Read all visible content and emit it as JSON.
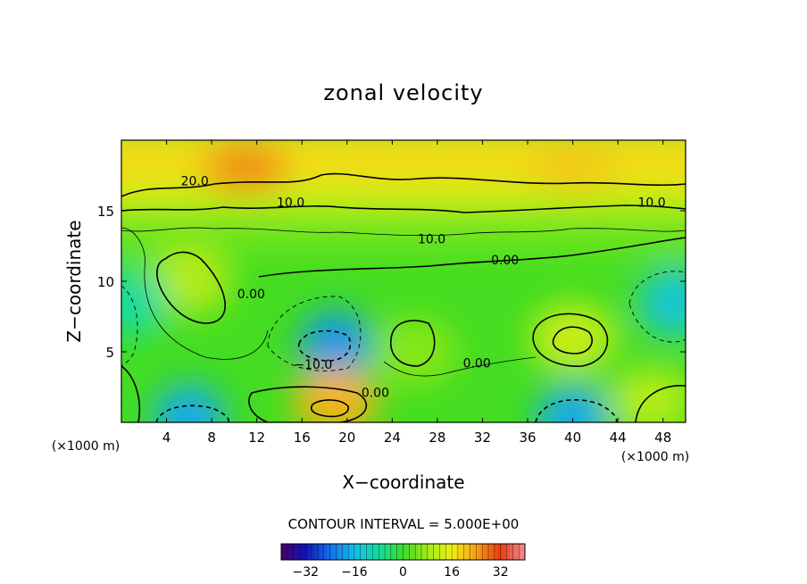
{
  "chart_data": {
    "type": "heatmap",
    "title": "zonal velocity",
    "xlabel": "X−coordinate",
    "ylabel": "Z−coordinate",
    "x_unit_left": "(×1000 m)",
    "x_unit_right": "(×1000 m)",
    "xlim": [
      0,
      50
    ],
    "ylim": [
      0,
      20
    ],
    "x_ticks": [
      4,
      8,
      12,
      16,
      20,
      24,
      28,
      32,
      36,
      40,
      44,
      48
    ],
    "y_ticks": [
      5,
      10,
      15
    ],
    "grid": false,
    "contour_interval_text": "CONTOUR INTERVAL = 5.000E+00",
    "contour_labels": [
      {
        "text": "20.0",
        "x": 6.5,
        "y": 16.8
      },
      {
        "text": "10.0",
        "x": 15.0,
        "y": 15.3
      },
      {
        "text": "10.0",
        "x": 47.0,
        "y": 15.3
      },
      {
        "text": "10.0",
        "x": 27.5,
        "y": 12.7
      },
      {
        "text": "0.00",
        "x": 34.0,
        "y": 11.2
      },
      {
        "text": "0.00",
        "x": 11.5,
        "y": 8.8
      },
      {
        "text": "−10.0",
        "x": 17.0,
        "y": 3.8
      },
      {
        "text": "0.00",
        "x": 31.5,
        "y": 3.9
      },
      {
        "text": "0.00",
        "x": 22.5,
        "y": 1.8
      }
    ],
    "colorbar": {
      "min": -40,
      "max": 40,
      "ticks": [
        -32,
        -16,
        0,
        16,
        32
      ],
      "tick_labels": [
        "−32",
        "−16",
        "0",
        "16",
        "32"
      ]
    },
    "field_features": [
      {
        "x": 11,
        "y": 18,
        "value": 26
      },
      {
        "x": 40,
        "y": 18,
        "value": 20
      },
      {
        "x": 6,
        "y": 10,
        "value": 10
      },
      {
        "x": 19,
        "y": 5.5,
        "value": -20
      },
      {
        "x": 40,
        "y": 6,
        "value": 12
      },
      {
        "x": 49,
        "y": 8.5,
        "value": -14
      },
      {
        "x": 19,
        "y": 1.5,
        "value": 22
      },
      {
        "x": 6,
        "y": 0.3,
        "value": -18
      },
      {
        "x": 40,
        "y": 0.3,
        "value": -18
      },
      {
        "x": 26,
        "y": 5,
        "value": 6
      },
      {
        "x": 47,
        "y": 1.5,
        "value": 10
      },
      {
        "x": 1,
        "y": 8.5,
        "value": -8
      }
    ]
  }
}
